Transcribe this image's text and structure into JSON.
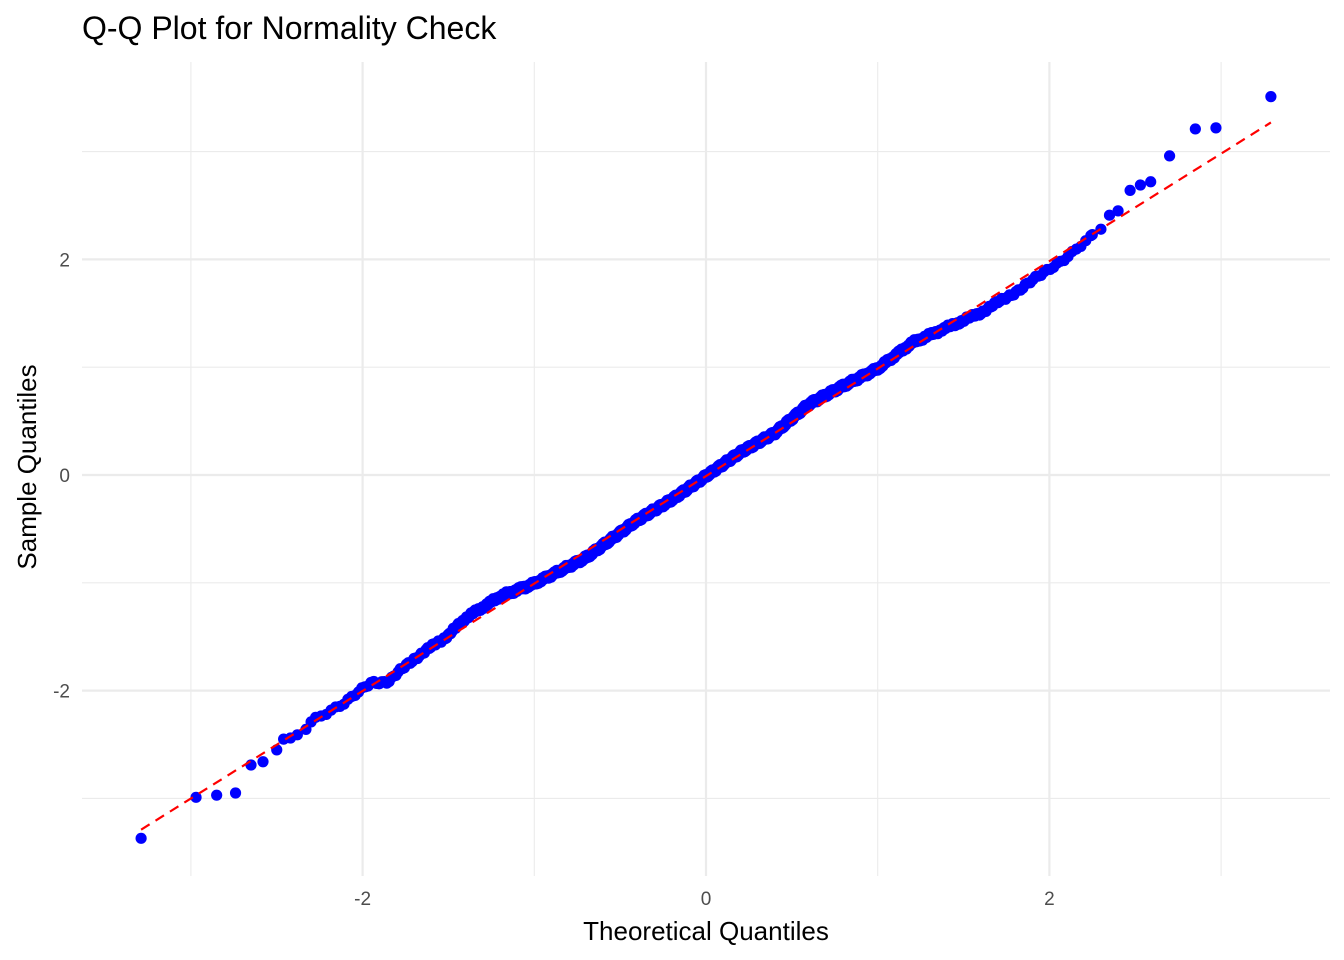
{
  "chart_data": {
    "type": "scatter",
    "title": "Q-Q Plot for Normality Check",
    "xlabel": "Theoretical Quantiles",
    "ylabel": "Sample Quantiles",
    "xlim": [
      -3.3,
      3.3
    ],
    "ylim": [
      -3.7,
      3.6
    ],
    "x_ticks": [
      -2,
      0,
      2
    ],
    "y_ticks": [
      -2,
      0,
      2
    ],
    "x_tick_labels": [
      "-2",
      "0",
      "2"
    ],
    "y_tick_labels": [
      "-2",
      "0",
      "2"
    ],
    "grid": true,
    "legend": "none",
    "colors": {
      "points": "#0000ff",
      "reference_line": "#ff0000",
      "grid_major": "#ebebeb",
      "grid_minor": "#f2f2f2"
    },
    "n_points": 1000,
    "series": [
      {
        "kind": "points",
        "style": "filled-circle"
      },
      {
        "kind": "line",
        "style": "dashed",
        "from": [
          -3.29,
          -3.29
        ],
        "to": [
          3.29,
          3.27
        ]
      }
    ],
    "tail_points": [
      [
        -3.29,
        -3.37
      ],
      [
        -2.97,
        -2.99
      ],
      [
        -2.85,
        -2.97
      ],
      [
        -2.74,
        -2.95
      ],
      [
        -2.65,
        -2.69
      ],
      [
        -2.58,
        -2.66
      ],
      [
        -2.5,
        -2.55
      ],
      [
        -2.46,
        -2.45
      ],
      [
        -2.42,
        -2.44
      ],
      [
        -2.38,
        -2.41
      ],
      [
        -2.33,
        -2.36
      ],
      [
        -2.3,
        -2.29
      ],
      [
        2.25,
        2.23
      ],
      [
        2.3,
        2.28
      ],
      [
        2.35,
        2.41
      ],
      [
        2.4,
        2.45
      ],
      [
        2.47,
        2.64
      ],
      [
        2.53,
        2.69
      ],
      [
        2.59,
        2.72
      ],
      [
        2.7,
        2.96
      ],
      [
        2.85,
        3.21
      ],
      [
        2.97,
        3.22
      ],
      [
        3.29,
        3.51
      ]
    ],
    "body_deviation_knots": [
      [
        -2.3,
        0.03
      ],
      [
        -2.1,
        -0.01
      ],
      [
        -1.95,
        0.03
      ],
      [
        -1.85,
        -0.06
      ],
      [
        -1.7,
        0.0
      ],
      [
        -1.5,
        0.02
      ],
      [
        -1.4,
        0.08
      ],
      [
        -1.2,
        0.08
      ],
      [
        -1.0,
        0.0
      ],
      [
        -0.7,
        -0.06
      ],
      [
        -0.4,
        -0.01
      ],
      [
        -0.2,
        -0.02
      ],
      [
        0.0,
        0.0
      ],
      [
        0.2,
        0.02
      ],
      [
        0.4,
        0.0
      ],
      [
        0.6,
        0.07
      ],
      [
        0.8,
        0.04
      ],
      [
        1.0,
        0.0
      ],
      [
        1.2,
        0.04
      ],
      [
        1.4,
        -0.02
      ],
      [
        1.6,
        -0.08
      ],
      [
        1.85,
        -0.09
      ],
      [
        2.0,
        -0.07
      ],
      [
        2.1,
        -0.06
      ],
      [
        2.25,
        -0.02
      ]
    ]
  }
}
